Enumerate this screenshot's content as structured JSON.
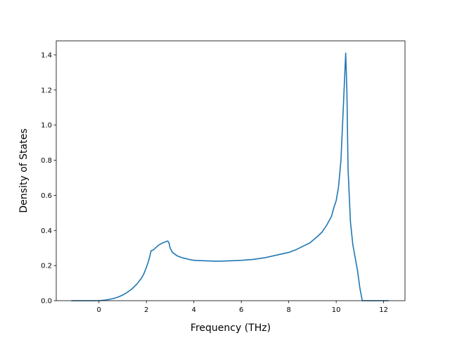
{
  "chart_data": {
    "type": "line",
    "xlabel": "Frequency (THz)",
    "ylabel": "Density of States",
    "xlim": [
      -1.8,
      12.9
    ],
    "ylim": [
      0,
      1.48
    ],
    "xticks": [
      0,
      2,
      4,
      6,
      8,
      10,
      12
    ],
    "xtick_labels": [
      "0",
      "2",
      "4",
      "6",
      "8",
      "10",
      "12"
    ],
    "yticks": [
      0.0,
      0.2,
      0.4,
      0.6,
      0.8,
      1.0,
      1.2,
      1.4
    ],
    "ytick_labels": [
      "0.0",
      "0.2",
      "0.4",
      "0.6",
      "0.8",
      "1.0",
      "1.2",
      "1.4"
    ],
    "grid": false,
    "series": [
      {
        "color": "#1f77b4",
        "x": [
          -1.15,
          0.0,
          0.3,
          0.6,
          0.8,
          1.0,
          1.2,
          1.4,
          1.6,
          1.8,
          1.9,
          2.0,
          2.1,
          2.2,
          2.3,
          2.5,
          2.7,
          2.9,
          2.95,
          3.0,
          3.1,
          3.3,
          3.5,
          3.8,
          4.0,
          4.5,
          5.0,
          5.5,
          6.0,
          6.5,
          7.0,
          7.5,
          8.0,
          8.3,
          8.6,
          8.9,
          9.2,
          9.4,
          9.6,
          9.8,
          9.9,
          10.0,
          10.1,
          10.2,
          10.3,
          10.4,
          10.45,
          10.5,
          10.6,
          10.7,
          10.9,
          11.0,
          11.1,
          11.5,
          12.2
        ],
        "y": [
          0.0,
          0.0,
          0.004,
          0.012,
          0.02,
          0.032,
          0.048,
          0.068,
          0.095,
          0.13,
          0.155,
          0.19,
          0.23,
          0.285,
          0.29,
          0.315,
          0.33,
          0.34,
          0.33,
          0.3,
          0.275,
          0.255,
          0.245,
          0.235,
          0.23,
          0.227,
          0.225,
          0.227,
          0.23,
          0.235,
          0.245,
          0.26,
          0.275,
          0.29,
          0.31,
          0.33,
          0.365,
          0.39,
          0.43,
          0.48,
          0.53,
          0.57,
          0.65,
          0.8,
          1.1,
          1.41,
          1.2,
          0.75,
          0.45,
          0.32,
          0.17,
          0.07,
          0.0,
          0.0,
          0.0
        ]
      }
    ]
  }
}
